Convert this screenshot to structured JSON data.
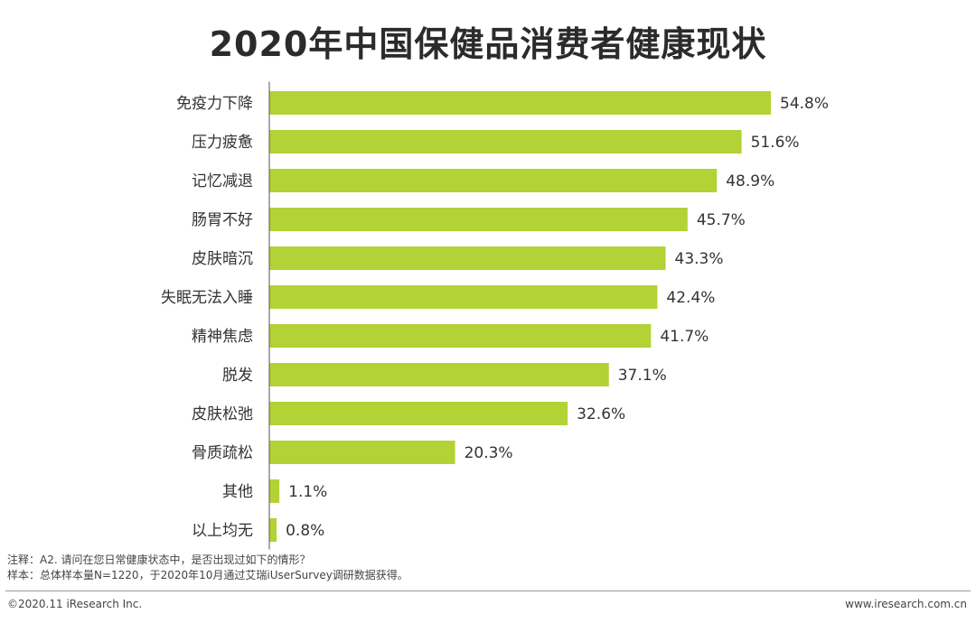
{
  "colors": {
    "bar": "#b2d235",
    "axis": "#555555",
    "text": "#333333"
  },
  "chart_data": {
    "type": "bar",
    "orientation": "horizontal",
    "title": "2020年中国保健品消费者健康现状",
    "xlabel": "",
    "ylabel": "",
    "xlim": [
      0,
      60
    ],
    "grid": false,
    "categories": [
      "免疫力下降",
      "压力疲惫",
      "记忆减退",
      "肠胃不好",
      "皮肤暗沉",
      "失眠无法入睡",
      "精神焦虑",
      "脱发",
      "皮肤松弛",
      "骨质疏松",
      "其他",
      "以上均无"
    ],
    "values": [
      54.8,
      51.6,
      48.9,
      45.7,
      43.3,
      42.4,
      41.7,
      37.1,
      32.6,
      20.3,
      1.1,
      0.8
    ],
    "labels": [
      "54.8%",
      "51.6%",
      "48.9%",
      "45.7%",
      "43.3%",
      "42.4%",
      "41.7%",
      "37.1%",
      "32.6%",
      "20.3%",
      "1.1%",
      "0.8%"
    ]
  },
  "notes": {
    "line1": "注释：A2. 请问在您日常健康状态中，是否出现过如下的情形？",
    "line2": "样本：总体样本量N=1220，于2020年10月通过艾瑞iUserSurvey调研数据获得。"
  },
  "footer": {
    "copyright": "©2020.11 iResearch Inc.",
    "website": "www.iresearch.com.cn"
  }
}
